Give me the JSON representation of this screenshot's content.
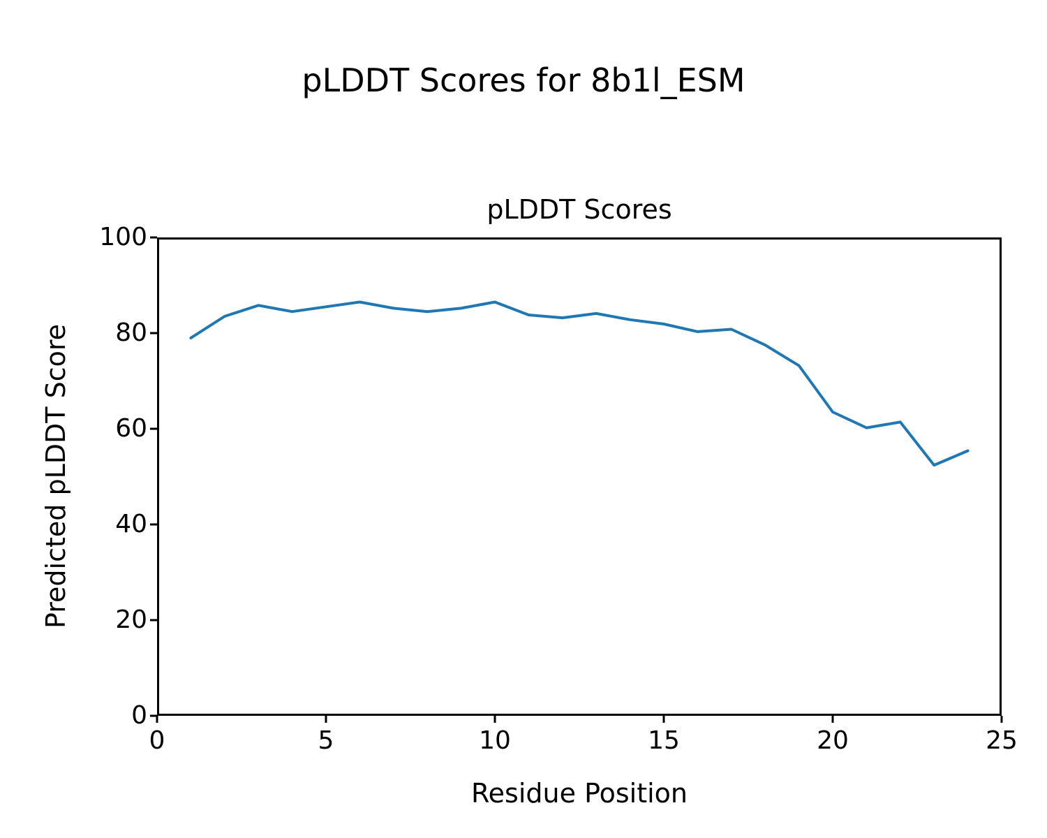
{
  "figure": {
    "suptitle": "pLDDT Scores for 8b1l_ESM"
  },
  "chart_data": {
    "type": "line",
    "title": "pLDDT Scores",
    "xlabel": "Residue Position",
    "ylabel": "Predicted pLDDT Score",
    "xlim": [
      0,
      25
    ],
    "ylim": [
      0,
      100
    ],
    "x_ticks": [
      0,
      5,
      10,
      15,
      20,
      25
    ],
    "y_ticks": [
      0,
      20,
      40,
      60,
      80,
      100
    ],
    "grid": false,
    "legend_position": "none",
    "line_color": "#1f77b4",
    "line_width": 4,
    "x": [
      1,
      2,
      3,
      4,
      5,
      6,
      7,
      8,
      9,
      10,
      11,
      12,
      13,
      14,
      15,
      16,
      17,
      18,
      19,
      20,
      21,
      22,
      23,
      24
    ],
    "y": [
      79.0,
      83.5,
      85.8,
      84.5,
      85.5,
      86.5,
      85.2,
      84.5,
      85.2,
      86.5,
      83.8,
      83.2,
      84.1,
      82.8,
      81.9,
      80.3,
      80.8,
      77.5,
      73.2,
      63.5,
      60.2,
      61.4,
      52.4,
      55.4
    ]
  }
}
